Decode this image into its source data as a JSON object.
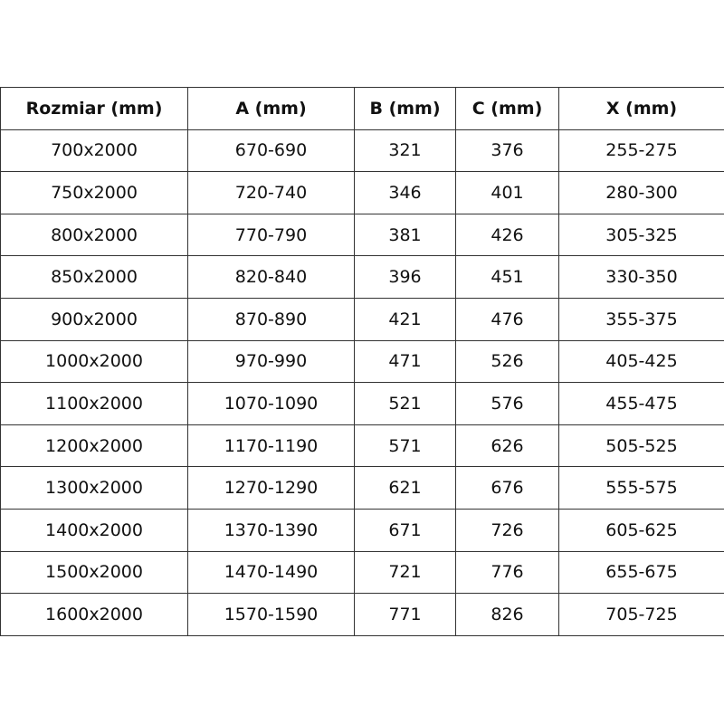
{
  "table": {
    "headers": [
      "Rozmiar (mm)",
      "A (mm)",
      "B (mm)",
      "C (mm)",
      "X (mm)"
    ],
    "rows": [
      [
        "700x2000",
        "670-690",
        "321",
        "376",
        "255-275"
      ],
      [
        "750x2000",
        "720-740",
        "346",
        "401",
        "280-300"
      ],
      [
        "800x2000",
        "770-790",
        "381",
        "426",
        "305-325"
      ],
      [
        "850x2000",
        "820-840",
        "396",
        "451",
        "330-350"
      ],
      [
        "900x2000",
        "870-890",
        "421",
        "476",
        "355-375"
      ],
      [
        "1000x2000",
        "970-990",
        "471",
        "526",
        "405-425"
      ],
      [
        "1100x2000",
        "1070-1090",
        "521",
        "576",
        "455-475"
      ],
      [
        "1200x2000",
        "1170-1190",
        "571",
        "626",
        "505-525"
      ],
      [
        "1300x2000",
        "1270-1290",
        "621",
        "676",
        "555-575"
      ],
      [
        "1400x2000",
        "1370-1390",
        "671",
        "726",
        "605-625"
      ],
      [
        "1500x2000",
        "1470-1490",
        "721",
        "776",
        "655-675"
      ],
      [
        "1600x2000",
        "1570-1590",
        "771",
        "826",
        "705-725"
      ]
    ]
  }
}
